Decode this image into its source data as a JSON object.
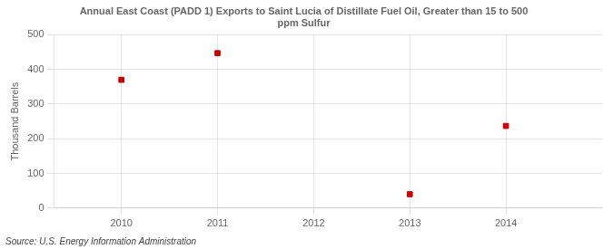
{
  "chart_data": {
    "type": "scatter",
    "title": "Annual East Coast (PADD 1) Exports to Saint Lucia of Distillate Fuel Oil, Greater than 15 to 500\nppm Sulfur",
    "ylabel": "Thousand Barrels",
    "annotations": [
      "Source: U.S. Energy Information Administration"
    ],
    "x": [
      2010,
      2011,
      2013,
      2014
    ],
    "values": [
      370,
      447,
      40,
      237
    ],
    "color": "#cc0000",
    "marker": "square",
    "xlim": [
      2009.3,
      2015.0
    ],
    "ylim": [
      0,
      500
    ],
    "xticks": [
      2010,
      2011,
      2012,
      2013,
      2014
    ],
    "yticks": [
      0,
      100,
      200,
      300,
      400,
      500
    ],
    "grid": true
  }
}
